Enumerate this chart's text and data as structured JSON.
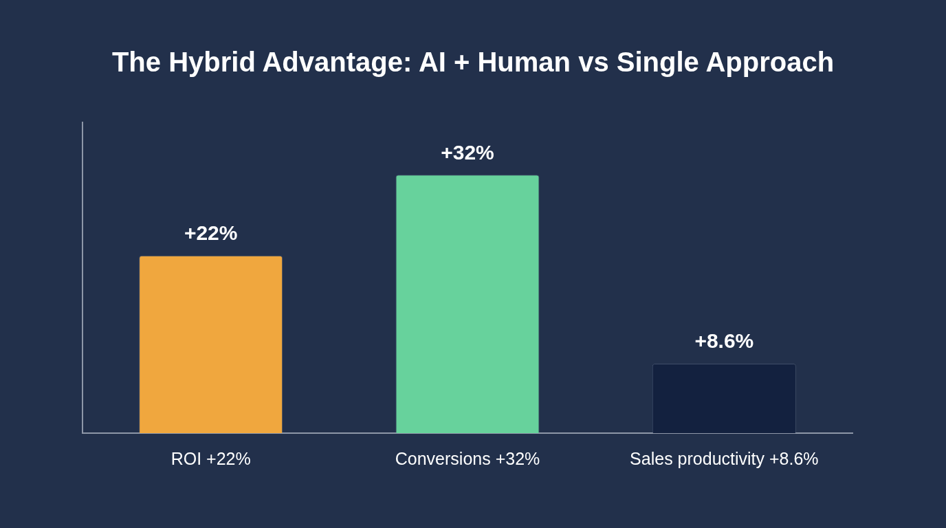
{
  "chart_data": {
    "type": "bar",
    "title": "The Hybrid Advantage: AI + Human vs Single Approach",
    "categories": [
      "ROI +22%",
      "Conversions +32%",
      "Sales productivity +8.6%"
    ],
    "values": [
      22,
      32,
      8.6
    ],
    "colors": [
      "#f0a73e",
      "#67d29c",
      "#13213f"
    ],
    "value_labels": [
      "+22%",
      "+32%",
      "+8.6%"
    ],
    "ylim": [
      0,
      38.5
    ],
    "tick_labels": "x",
    "grid": false,
    "legend": false
  }
}
